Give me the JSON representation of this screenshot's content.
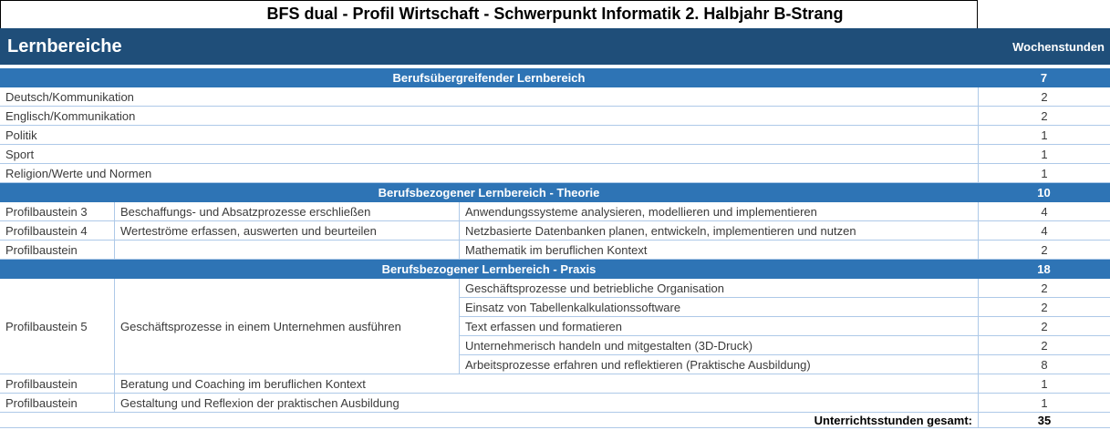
{
  "title": "BFS dual - Profil Wirtschaft - Schwerpunkt Informatik 2. Halbjahr B-Strang",
  "header": {
    "main_label": "Lernbereiche",
    "hours_label": "Wochenstunden"
  },
  "colors": {
    "header_bg": "#1F4E79",
    "section_bg": "#2E74B5",
    "grid_line": "#AEC9E8",
    "body_text": "#3A3A3A"
  },
  "sections": [
    {
      "label": "Berufsübergreifender Lernbereich",
      "hours": "7",
      "rows": [
        {
          "label": "Deutsch/Kommunikation",
          "hours": "2"
        },
        {
          "label": "Englisch/Kommunikation",
          "hours": "2"
        },
        {
          "label": "Politik",
          "hours": "1"
        },
        {
          "label": "Sport",
          "hours": "1"
        },
        {
          "label": "Religion/Werte und Normen",
          "hours": "1"
        }
      ]
    },
    {
      "label": "Berufsbezogener Lernbereich - Theorie",
      "hours": "10",
      "rows": [
        {
          "baustein": "Profilbaustein 3",
          "thema": "Beschaffungs- und Absatzprozesse erschließen",
          "inhalt": "Anwendungssysteme analysieren, modellieren und implementieren",
          "hours": "4"
        },
        {
          "baustein": "Profilbaustein 4",
          "thema": "Werteströme erfassen, auswerten und beurteilen",
          "inhalt": "Netzbasierte Datenbanken planen, entwickeln, implementieren und nutzen",
          "hours": "4"
        },
        {
          "baustein": "Profilbaustein",
          "thema": "",
          "inhalt": "Mathematik im beruflichen Kontext",
          "hours": "2"
        }
      ]
    },
    {
      "label": "Berufsbezogener Lernbereich - Praxis",
      "hours": "18",
      "block": {
        "baustein": "Profilbaustein 5",
        "thema": "Geschäftsprozesse in einem Unternehmen ausführen",
        "rows": [
          {
            "inhalt": "Geschäftsprozesse und betriebliche Organisation",
            "hours": "2"
          },
          {
            "inhalt": "Einsatz von Tabellenkalkulationssoftware",
            "hours": "2"
          },
          {
            "inhalt": "Text erfassen und formatieren",
            "hours": "2"
          },
          {
            "inhalt": "Unternehmerisch handeln und mitgestalten (3D-Druck)",
            "hours": "2"
          },
          {
            "inhalt": "Arbeitsprozesse erfahren und reflektieren (Praktische Ausbildung)",
            "hours": "8"
          }
        ]
      },
      "rows": [
        {
          "baustein": "Profilbaustein",
          "thema": "Beratung und Coaching im beruflichen Kontext",
          "hours": "1"
        },
        {
          "baustein": "Profilbaustein",
          "thema": "Gestaltung und Reflexion der praktischen Ausbildung",
          "hours": "1"
        }
      ]
    }
  ],
  "footer": {
    "label": "Unterrichtsstunden gesamt:",
    "value": "35"
  }
}
